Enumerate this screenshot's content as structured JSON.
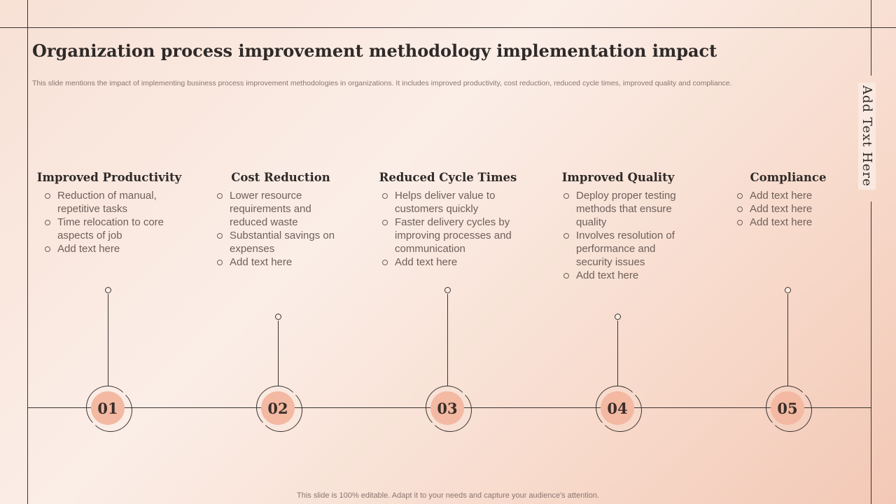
{
  "slide": {
    "title": "Organization process improvement methodology implementation impact",
    "subtitle": "This slide mentions the impact of implementing business process improvement methodologies in organizations. It includes improved productivity, cost reduction, reduced cycle times, improved quality and compliance.",
    "side_text": "Add Text Here",
    "footer": "This slide is 100% editable. Adapt it to your needs and capture your audience's attention."
  },
  "steps": [
    {
      "number": "01",
      "heading": "Improved Productivity",
      "bullets": [
        "Reduction of manual, repetitive tasks",
        "Time relocation to core aspects of job",
        "Add text here"
      ]
    },
    {
      "number": "02",
      "heading": "Cost Reduction",
      "bullets": [
        "Lower resource requirements and reduced waste",
        "Substantial savings on expenses",
        "Add text here"
      ]
    },
    {
      "number": "03",
      "heading": "Reduced Cycle Times",
      "bullets": [
        "Helps deliver value to customers quickly",
        "Faster delivery cycles by improving processes and communication",
        "Add text here"
      ]
    },
    {
      "number": "04",
      "heading": "Improved Quality",
      "bullets": [
        "Deploy proper testing methods that ensure quality",
        "Involves resolution of performance and security issues",
        "Add text here"
      ]
    },
    {
      "number": "05",
      "heading": "Compliance",
      "bullets": [
        "Add text here",
        "Add text here",
        "Add text here"
      ]
    }
  ],
  "colors": {
    "accent": "#f3b9a2",
    "line": "#3a3330",
    "text": "#2f2a28"
  }
}
